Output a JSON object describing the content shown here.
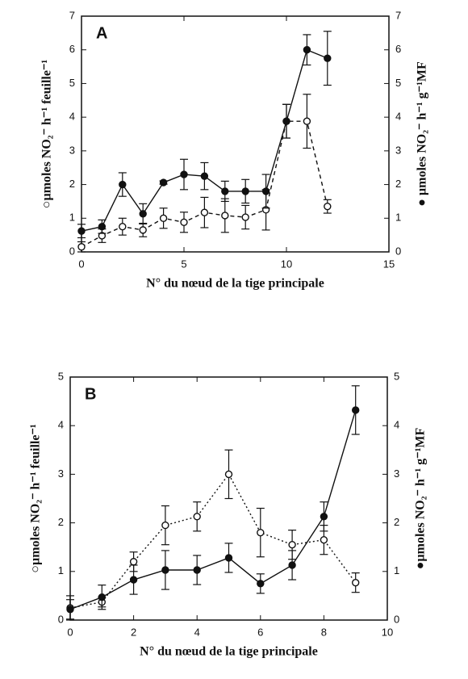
{
  "chart_data": [
    {
      "type": "line",
      "panel_label": "A",
      "x_label": "N° du nœud de la tige principale",
      "y_label": "○µmoles NO₂⁻  h⁻¹  feuille⁻¹",
      "y2_label": "● µmoles NO₂⁻  h⁻¹  g⁻¹MF",
      "x": [
        0,
        1,
        2,
        3,
        4,
        5,
        6,
        7,
        8,
        9,
        10,
        11,
        12
      ],
      "xlim": [
        0,
        15
      ],
      "xticks": [
        0,
        5,
        10,
        15
      ],
      "ylim": [
        0,
        7
      ],
      "yticks": [
        0,
        1,
        2,
        3,
        4,
        5,
        6,
        7
      ],
      "y2lim": [
        0,
        7
      ],
      "y2ticks": [
        0,
        1,
        2,
        3,
        4,
        5,
        6,
        7
      ],
      "grid": false,
      "series": [
        {
          "marker": "open",
          "line": "dashed",
          "color": "#111111",
          "values": [
            0.15,
            0.48,
            0.75,
            0.65,
            1.0,
            0.88,
            1.17,
            1.08,
            1.03,
            1.25,
            3.88,
            3.88,
            1.35
          ],
          "errors": [
            0.15,
            0.2,
            0.25,
            0.2,
            0.3,
            0.3,
            0.45,
            0.5,
            0.35,
            0.6,
            0.5,
            0.8,
            0.2
          ]
        },
        {
          "marker": "filled",
          "line": "solid",
          "color": "#111111",
          "axis": "y2",
          "values": [
            0.62,
            0.75,
            2.0,
            1.13,
            2.06,
            2.3,
            2.25,
            1.8,
            1.8,
            1.8,
            3.88,
            6.0,
            5.75
          ],
          "errors": [
            0.2,
            0.2,
            0.35,
            0.3,
            0.05,
            0.45,
            0.4,
            0.3,
            0.35,
            0.5,
            0.5,
            0.45,
            0.8
          ]
        }
      ]
    },
    {
      "type": "line",
      "panel_label": "B",
      "x_label": "N° du nœud de la tige principale",
      "y_label": "○µmoles NO₂⁻  h⁻¹  feuille⁻¹",
      "y2_label": "●µmoles NO₂⁻  h⁻¹  g⁻¹MF",
      "x": [
        0,
        1,
        2,
        3,
        4,
        5,
        6,
        7,
        8,
        9
      ],
      "xlim": [
        0,
        10
      ],
      "xticks": [
        0,
        2,
        4,
        6,
        8,
        10
      ],
      "ylim": [
        0,
        5
      ],
      "yticks": [
        0,
        1,
        2,
        3,
        4,
        5
      ],
      "y2lim": [
        0,
        5
      ],
      "y2ticks": [
        0,
        1,
        2,
        3,
        4,
        5
      ],
      "grid": false,
      "series": [
        {
          "marker": "open",
          "line": "dotted",
          "color": "#111111",
          "values": [
            0.25,
            0.37,
            1.2,
            1.95,
            2.13,
            3.0,
            1.8,
            1.55,
            1.65,
            0.77
          ],
          "errors": [
            0.25,
            0.1,
            0.2,
            0.4,
            0.3,
            0.5,
            0.5,
            0.3,
            0.3,
            0.2
          ]
        },
        {
          "marker": "filled",
          "line": "solid",
          "color": "#111111",
          "axis": "y2",
          "values": [
            0.22,
            0.47,
            0.83,
            1.03,
            1.03,
            1.28,
            0.75,
            1.13,
            2.13,
            4.32
          ],
          "errors": [
            0.2,
            0.25,
            0.3,
            0.4,
            0.3,
            0.3,
            0.2,
            0.3,
            0.3,
            0.5
          ]
        }
      ]
    }
  ]
}
